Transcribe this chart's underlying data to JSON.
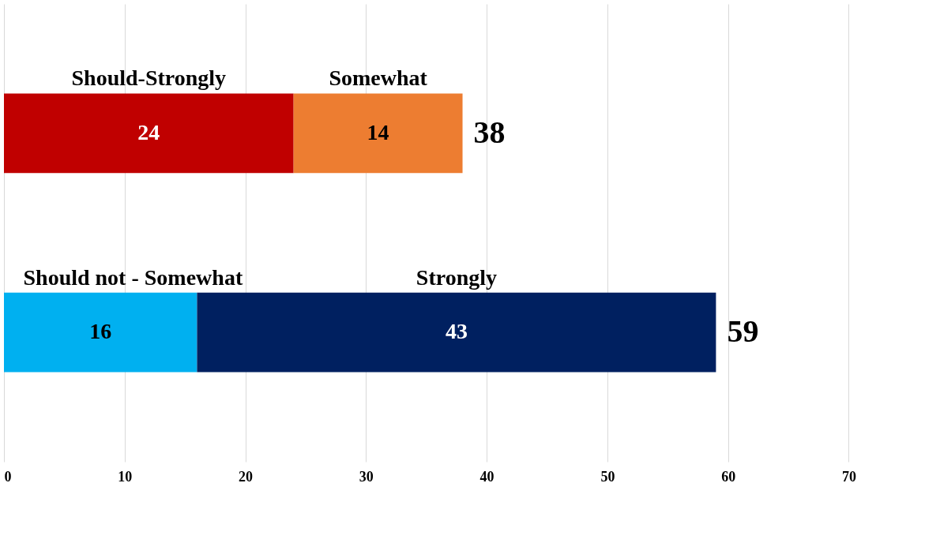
{
  "chart_data": {
    "type": "bar",
    "orientation": "horizontal",
    "stacked": true,
    "categories": [
      null,
      null
    ],
    "series": [
      {
        "name": "Should-Strongly",
        "color": "#c00000",
        "values": [
          24,
          null
        ]
      },
      {
        "name": "Somewhat",
        "color": "#ed7d31",
        "values": [
          14,
          null
        ]
      },
      {
        "name": "Should not - Somewhat",
        "color": "#00b0f0",
        "values": [
          null,
          16
        ]
      },
      {
        "name": "Strongly",
        "color": "#002060",
        "values": [
          null,
          43
        ]
      }
    ],
    "totals": [
      "38",
      "59"
    ],
    "data_labels": true,
    "xlim": [
      0,
      72
    ],
    "xticks": [
      0,
      10,
      20,
      30,
      40,
      50,
      60,
      70
    ],
    "grid": "x"
  }
}
